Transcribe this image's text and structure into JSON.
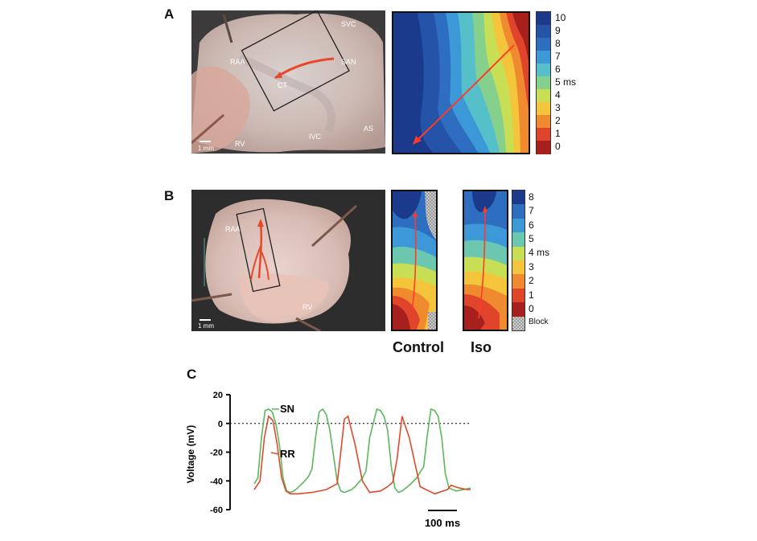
{
  "panels": {
    "A": {
      "letter": "A",
      "photo_labels": [
        "SVC",
        "RAA",
        "SAN",
        "CT",
        "RV",
        "IVC",
        "AS"
      ],
      "scale_bar": "1 mm",
      "colorbar_ticks": [
        "10",
        "9",
        "8",
        "7",
        "6",
        "5 ms",
        "4",
        "3",
        "2",
        "1",
        "0"
      ],
      "colorbar_colors": [
        "#1b3a8c",
        "#2453a8",
        "#2e6ec0",
        "#3c98d6",
        "#55c0c9",
        "#86d08e",
        "#c8df55",
        "#f4c43a",
        "#f08a2e",
        "#e0442a",
        "#a8201e"
      ]
    },
    "B": {
      "letter": "B",
      "photo_labels": [
        "RAA",
        "RV"
      ],
      "scale_bar": "1 mm",
      "map_captions": [
        "Control",
        "Iso"
      ],
      "colorbar_ticks": [
        "8",
        "7",
        "6",
        "5",
        "4 ms",
        "3",
        "2",
        "1",
        "0",
        "Block"
      ],
      "colorbar_colors": [
        "#1b3a8c",
        "#2e6ec0",
        "#3c98d6",
        "#6cc7b0",
        "#c8df55",
        "#f4c43a",
        "#f08a2e",
        "#e0442a",
        "#a8201e",
        "#a9a9a9"
      ]
    },
    "C": {
      "letter": "C",
      "ylabel": "Voltage (mV)",
      "scale_bar": "100 ms",
      "chart_data": {
        "type": "line",
        "ylabel": "Voltage (mV)",
        "ylim": [
          -60,
          20
        ],
        "yticks": [
          20,
          0,
          -20,
          -40,
          -60
        ],
        "xlim": [
          0,
          300
        ],
        "x_unit": "ms",
        "zero_line": "dotted",
        "series": [
          {
            "name": "SN",
            "color": "#5cb85c",
            "x": [
              0,
              5,
              10,
              15,
              20,
              25,
              30,
              35,
              40,
              45,
              50,
              55,
              60,
              70,
              75,
              80,
              85,
              90,
              95,
              100,
              105,
              115,
              120,
              125,
              130,
              135,
              140,
              145,
              150,
              155,
              160,
              170,
              175,
              180,
              185,
              190,
              195,
              200,
              205,
              210,
              215,
              225,
              230,
              235,
              240,
              245,
              250,
              255,
              260,
              265,
              270,
              280,
              300
            ],
            "y": [
              -42,
              -38,
              -10,
              9,
              10,
              8,
              0,
              -15,
              -38,
              -47,
              -48,
              -47,
              -45,
              -40,
              -37,
              -32,
              -10,
              8,
              10,
              6,
              -5,
              -40,
              -47,
              -48,
              -47,
              -46,
              -44,
              -41,
              -38,
              -33,
              -10,
              10,
              9,
              5,
              -5,
              -30,
              -45,
              -48,
              -47,
              -45,
              -43,
              -38,
              -34,
              -30,
              -8,
              10,
              9,
              5,
              -10,
              -35,
              -45,
              -47,
              -45
            ]
          },
          {
            "name": "RR",
            "color": "#e04a2a",
            "x": [
              0,
              8,
              14,
              20,
              26,
              32,
              38,
              44,
              50,
              60,
              80,
              100,
              115,
              120,
              125,
              130,
              140,
              150,
              160,
              175,
              185,
              192,
              198,
              205,
              215,
              230,
              250,
              268,
              273,
              278,
              285,
              295,
              300
            ],
            "y": [
              -46,
              -40,
              -10,
              5,
              2,
              -15,
              -38,
              -47,
              -49,
              -49,
              -48,
              -46,
              -42,
              -20,
              3,
              5,
              -15,
              -40,
              -48,
              -47,
              -44,
              -41,
              -25,
              5,
              -10,
              -44,
              -49,
              -46,
              -43,
              -44,
              -45,
              -46,
              -46
            ]
          }
        ]
      }
    }
  }
}
